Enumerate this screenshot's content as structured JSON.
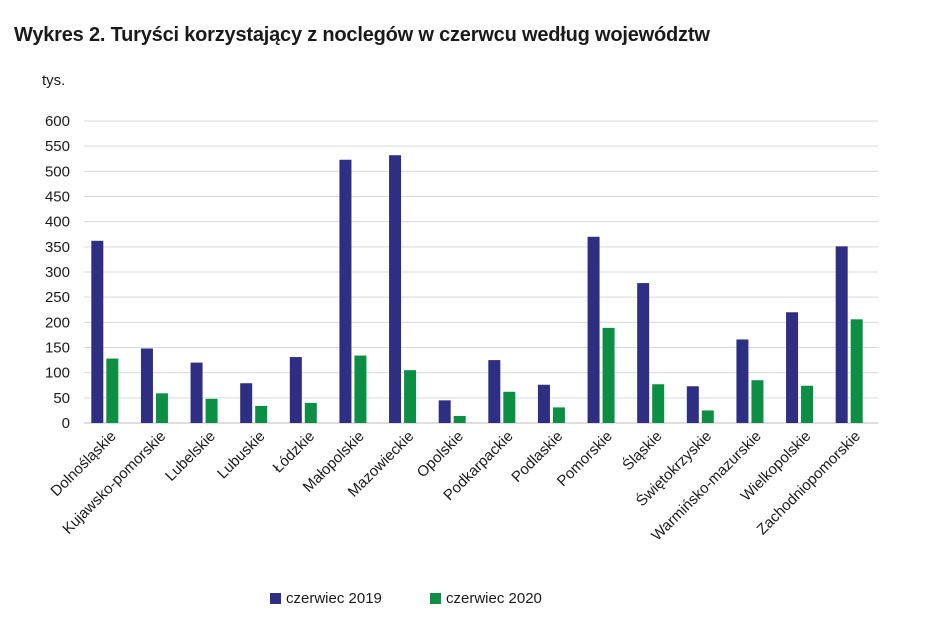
{
  "title": "Wykres 2. Turyści korzystający z noclegów w czerwcu według województw",
  "unit_label": "tys.",
  "chart_data": {
    "type": "bar",
    "title": "Wykres 2. Turyści korzystający z noclegów w czerwcu według województw",
    "ylabel": "tys.",
    "xlabel": "",
    "ylim": [
      0,
      600
    ],
    "yticks": [
      0,
      50,
      100,
      150,
      200,
      250,
      300,
      350,
      400,
      450,
      500,
      550,
      600
    ],
    "grid": true,
    "legend_position": "bottom",
    "categories": [
      "Dolnośląskie",
      "Kujawsko-pomorskie",
      "Lubelskie",
      "Lubuskie",
      "Łódzkie",
      "Małopolskie",
      "Mazowieckie",
      "Opolskie",
      "Podkarpackie",
      "Podlaskie",
      "Pomorskie",
      "Śląskie",
      "Świętokrzyskie",
      "Warmińsko-mazurskie",
      "Wielkopolskie",
      "Zachodniopomorskie"
    ],
    "series": [
      {
        "name": "czerwiec 2019",
        "color": "#2e2e83",
        "values": [
          362,
          148,
          120,
          79,
          131,
          523,
          532,
          45,
          125,
          76,
          370,
          278,
          73,
          166,
          220,
          351
        ]
      },
      {
        "name": "czerwiec 2020",
        "color": "#0c8f44",
        "values": [
          128,
          59,
          48,
          34,
          40,
          134,
          105,
          14,
          62,
          31,
          189,
          77,
          25,
          85,
          74,
          206
        ]
      }
    ]
  }
}
